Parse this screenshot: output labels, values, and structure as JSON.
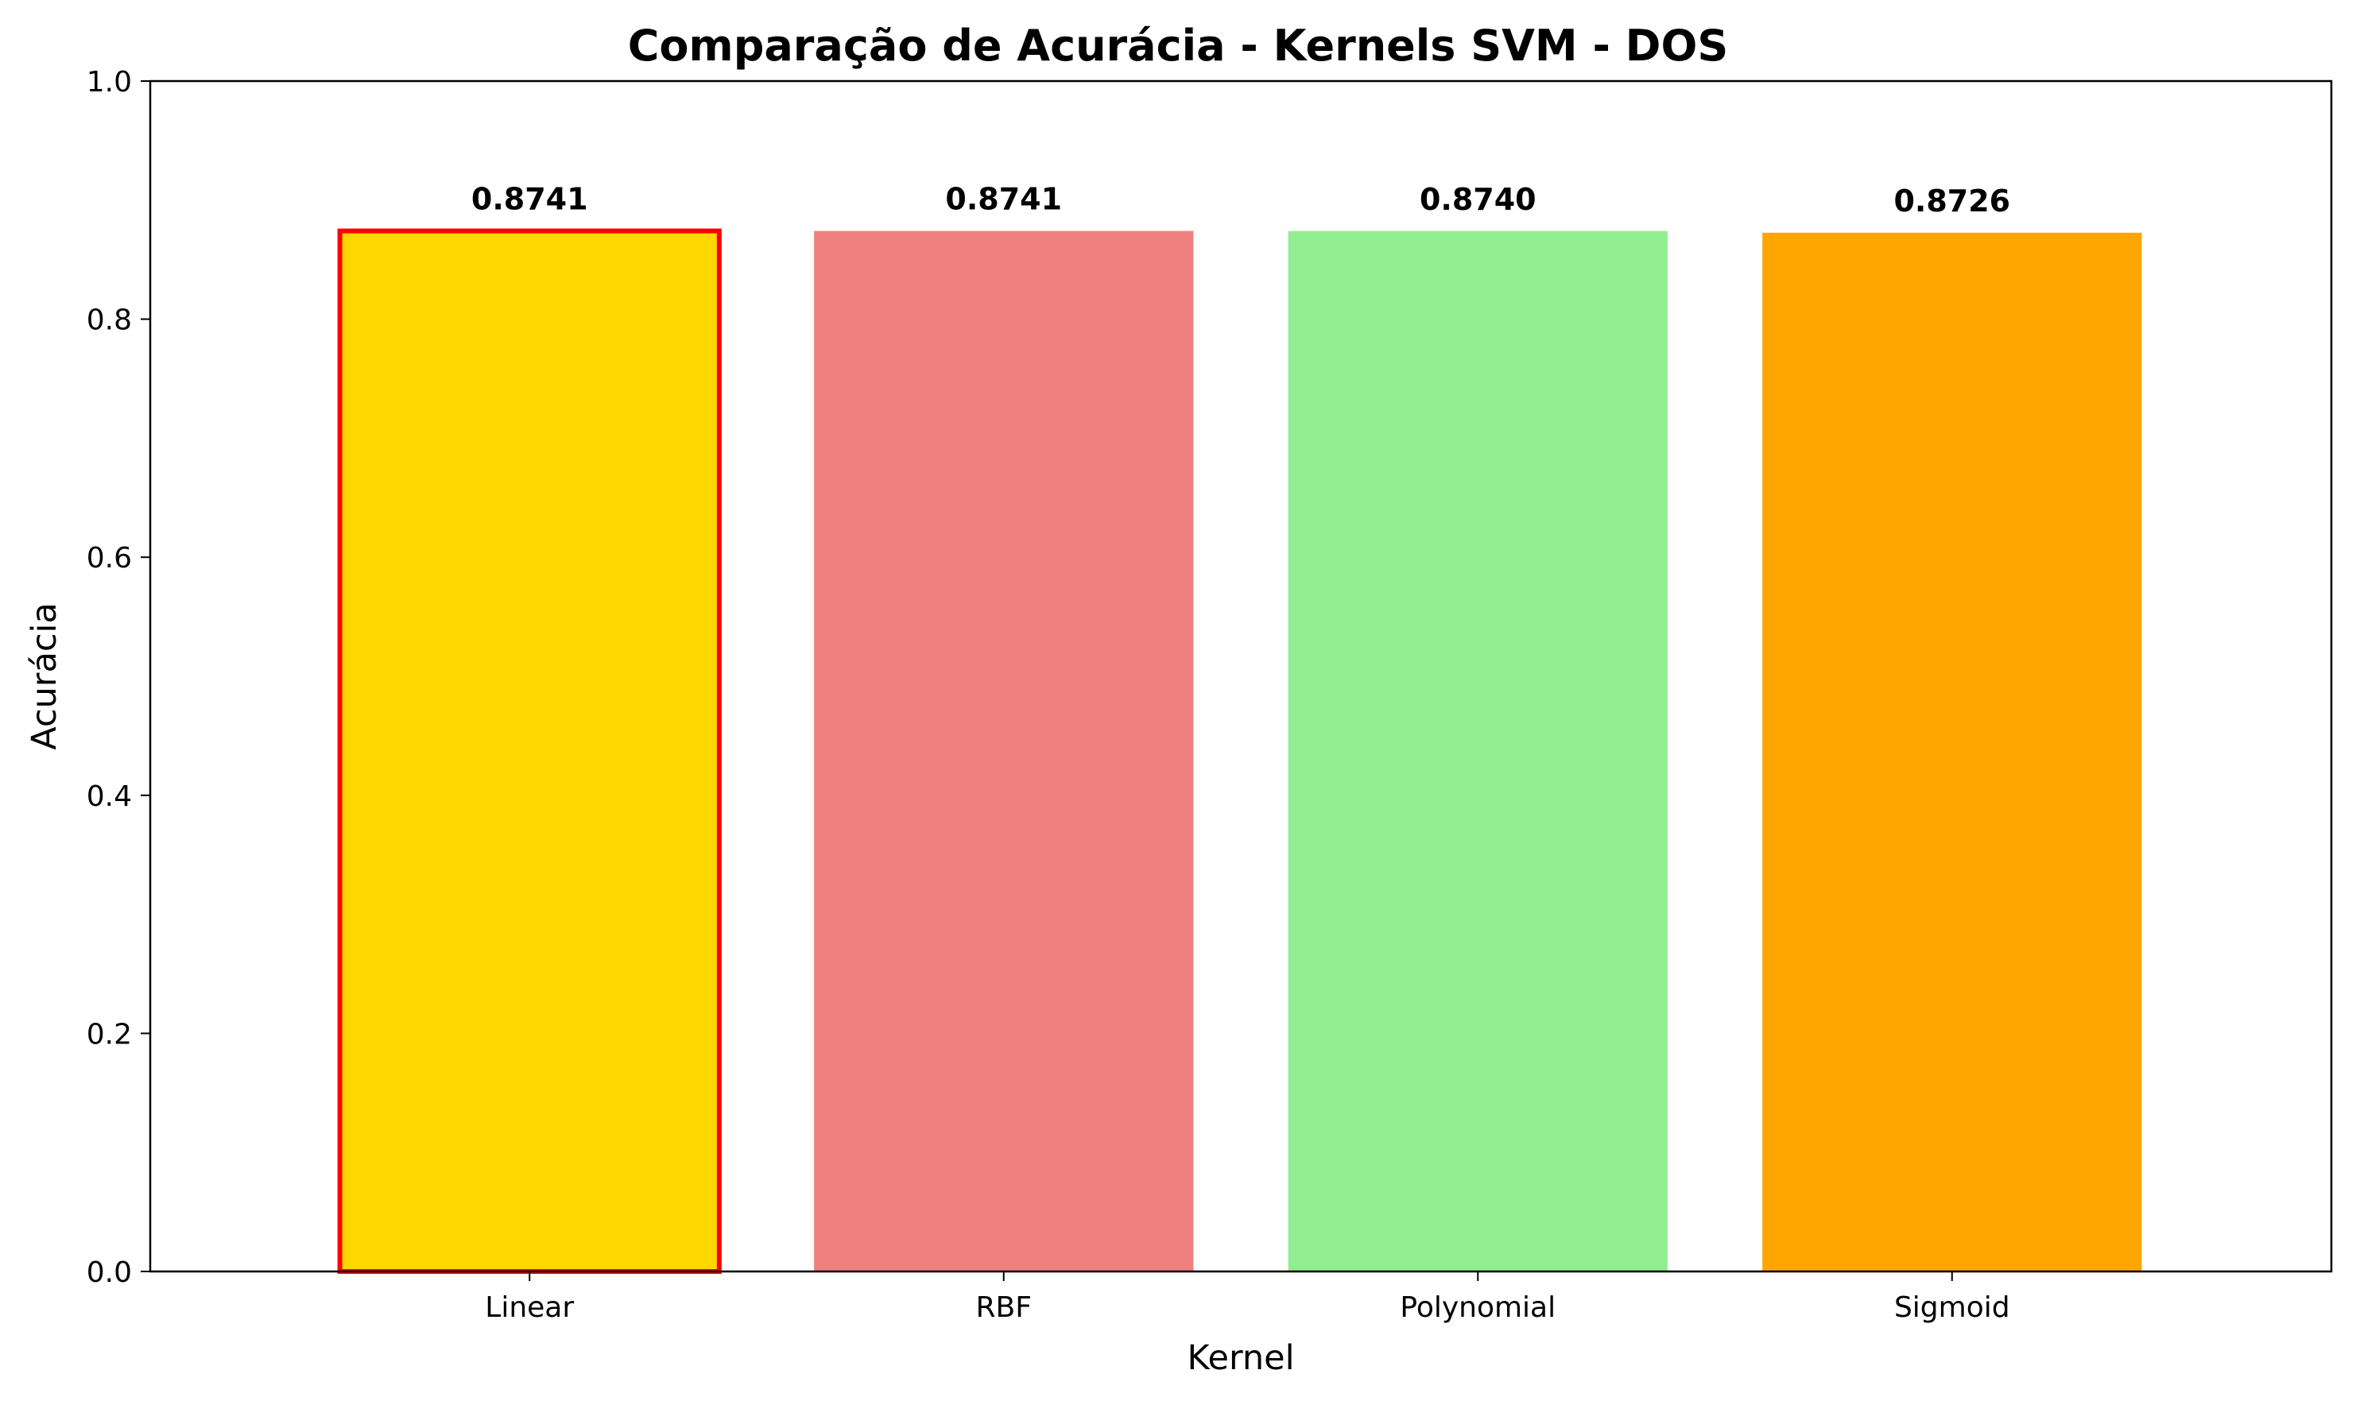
{
  "chart_data": {
    "type": "bar",
    "title": "Comparação de Acurácia - Kernels SVM - DOS",
    "xlabel": "Kernel",
    "ylabel": "Acurácia",
    "categories": [
      "Linear",
      "RBF",
      "Polynomial",
      "Sigmoid"
    ],
    "values": [
      0.8741,
      0.8741,
      0.874,
      0.8726
    ],
    "data_labels": [
      "0.8741",
      "0.8741",
      "0.8740",
      "0.8726"
    ],
    "colors": [
      "#FFD700",
      "#F08080",
      "#90EE90",
      "#FFA500"
    ],
    "highlight": {
      "index": 0,
      "edge_color": "#FF0000"
    },
    "ylim": [
      0,
      1.0
    ],
    "yticks": [
      0.0,
      0.2,
      0.4,
      0.6,
      0.8,
      1.0
    ],
    "ytick_labels": [
      "0.0",
      "0.2",
      "0.4",
      "0.6",
      "0.8",
      "1.0"
    ],
    "grid": false,
    "legend": "none"
  }
}
